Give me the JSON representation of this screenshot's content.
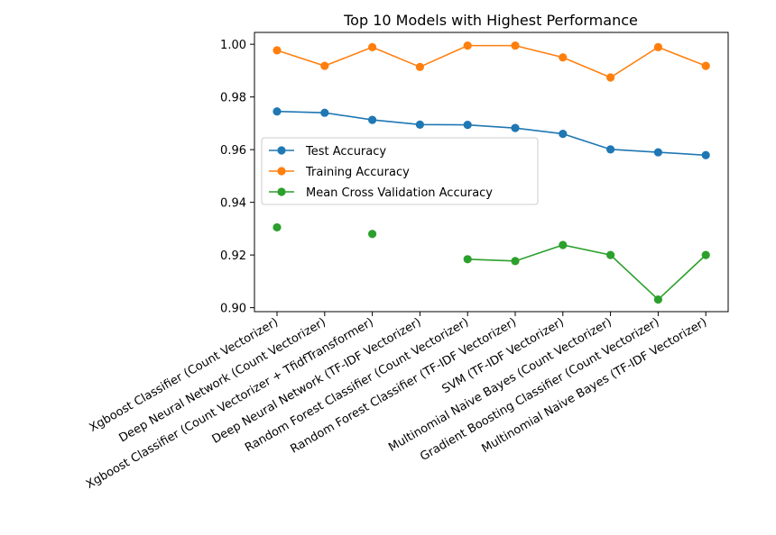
{
  "chart_data": {
    "type": "line",
    "title": "Top 10 Models with Highest Performance",
    "xlabel": "",
    "ylabel": "",
    "categories": [
      "Xgboost Classifier (Count Vectorizer)",
      "Deep Neural Network (Count Vectorizer)",
      "Xgboost Classifier (Count Vectorizer + TfidfTransformer)",
      "Deep Neural Network (TF-IDF Vectorizer)",
      "Random Forest Classifier (Count Vectorizer)",
      "Random Forest Classifier (TF-IDF Vectorizer)",
      "SVM (TF-IDF Vectorizer)",
      "Multinomial Naive Bayes (Count Vectorizer)",
      "Gradient Boosting Classifier (Count Vectorizer)",
      "Multinomial Naive Bayes (TF-IDF Vectorizer)"
    ],
    "series": [
      {
        "name": "Test Accuracy",
        "color": "#1f77b4",
        "values": [
          0.9745,
          0.974,
          0.9713,
          0.9695,
          0.9694,
          0.9682,
          0.966,
          0.9601,
          0.959,
          0.9579
        ]
      },
      {
        "name": "Training Accuracy",
        "color": "#ff7f0e",
        "values": [
          0.9977,
          0.9918,
          0.9989,
          0.9914,
          0.9995,
          0.9995,
          0.995,
          0.9874,
          0.9989,
          0.9918
        ]
      },
      {
        "name": "Mean Cross Validation Accuracy",
        "color": "#2ca02c",
        "values": [
          0.9305,
          null,
          0.928,
          null,
          0.9184,
          0.9177,
          0.9238,
          0.92,
          0.9031,
          0.92
        ]
      }
    ],
    "yticks": [
      "0.90",
      "0.92",
      "0.94",
      "0.96",
      "0.98",
      "1.00"
    ],
    "ylim": [
      0.8985,
      1.0045
    ],
    "grid": false,
    "legend_placement": "center-left"
  }
}
